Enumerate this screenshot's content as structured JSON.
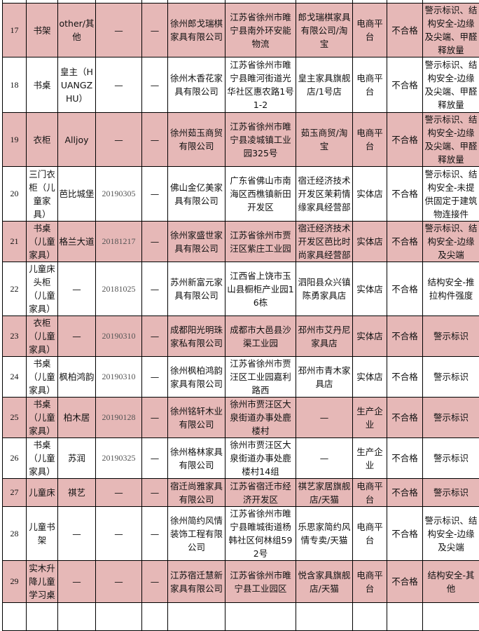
{
  "colors": {
    "highlight_row": "#e6b8b7",
    "border": "#000000"
  },
  "rows": [
    {
      "no": "17",
      "product": "书架",
      "brand": "other/其他",
      "date": "—",
      "spec": "—",
      "producer": "徐州郎戈瑞棋家具有限公司",
      "address": "江苏省徐州市睢宁县南外环安能物流",
      "seller": "郎戈瑞棋家具有限公司/淘宝",
      "channel": "电商平台",
      "result": "不合格",
      "items": "警示标识、结构安全-边缘及尖端、甲醛释放量",
      "highlight": true
    },
    {
      "no": "18",
      "product": "书桌",
      "brand": "皇主（HUANGZHU）",
      "date": "—",
      "spec": "—",
      "producer": "徐州木香花家具有限公司",
      "address": "江苏省徐州市睢宁县睢河街道光华社区惠农路1号1-2",
      "seller": "皇主家具旗舰店/1号店",
      "channel": "电商平台",
      "result": "不合格",
      "items": "警示标识、结构安全-边缘及尖端、甲醛释放量",
      "highlight": false
    },
    {
      "no": "19",
      "product": "衣柜",
      "brand": "Alljoy",
      "date": "—",
      "spec": "—",
      "producer": "徐州茹玉商贸有限公司",
      "address": "江苏省徐州市睢宁县凌城镇工业园325号",
      "seller": "茹玉商贸/淘宝",
      "channel": "电商平台",
      "result": "不合格",
      "items": "警示标识、结构安全-边缘及尖端、甲醛释放量",
      "highlight": true
    },
    {
      "no": "20",
      "product": "三门衣柜（儿童家具）",
      "brand": "芭比城堡",
      "date": "20190305",
      "spec": "—",
      "producer": "佛山金亿美家具有限公司",
      "address": "广东省佛山市南海区西樵镇新田开发区",
      "seller": "宿迁经济技术开发区茉莉情缘家具经营部",
      "channel": "实体店",
      "result": "不合格",
      "items": "警示标识、结构安全-未提供固定于建筑物连接件",
      "highlight": false
    },
    {
      "no": "21",
      "product": "书桌（儿童家具）",
      "brand": "格兰大道",
      "date": "20181217",
      "spec": "—",
      "producer": "徐州家盛世家具有限公司",
      "address": "江苏省徐州市贾汪区紫庄工业园",
      "seller": "宿迁经济技术开发区芭比时尚家具经营部",
      "channel": "实体店",
      "result": "不合格",
      "items": "警示标识、结构安全-边缘及尖端",
      "highlight": true
    },
    {
      "no": "22",
      "product": "儿童床头柜（儿童家具）",
      "brand": "—",
      "date": "20181025",
      "spec": "—",
      "producer": "苏州新富元家具有限公司",
      "address": "江西省上饶市玉山县橱柜产业园16栋",
      "seller": "泗阳县众兴镇陈勇家具店",
      "channel": "实体店",
      "result": "不合格",
      "items": "结构安全-推拉构件强度",
      "highlight": false
    },
    {
      "no": "23",
      "product": "衣柜（儿童家具）",
      "brand": "—",
      "date": "20190310",
      "spec": "—",
      "producer": "成都阳光明珠家私有限公司",
      "address": "成都市大邑县沙渠工业园",
      "seller": "邳州市艾丹尼家具店",
      "channel": "实体店",
      "result": "不合格",
      "items": "警示标识",
      "highlight": true
    },
    {
      "no": "24",
      "product": "书桌（儿童家具）",
      "brand": "枫柏鸿韵",
      "date": "20190310",
      "spec": "—",
      "producer": "徐州枫柏鸿韵家具有限公司",
      "address": "江苏省徐州市贾汪区工业园嘉利路西",
      "seller": "邳州市青木家具店",
      "channel": "实体店",
      "result": "不合格",
      "items": "警示标识",
      "highlight": false
    },
    {
      "no": "25",
      "product": "书桌（儿童家具）",
      "brand": "柏木居",
      "date": "20190128",
      "spec": "—",
      "producer": "徐州铭轩木业有限公司",
      "address": "徐州市贾汪区大泉街道办事处鹿楼村",
      "seller": "—",
      "channel": "生产企业",
      "result": "不合格",
      "items": "警示标识",
      "highlight": true
    },
    {
      "no": "26",
      "product": "书桌（儿童家具）",
      "brand": "苏润",
      "date": "20190325",
      "spec": "—",
      "producer": "徐州格林家具有限公司",
      "address": "徐州市贾汪区大泉街道办事处鹿楼村14组",
      "seller": "—",
      "channel": "生产企业",
      "result": "不合格",
      "items": "警示标识",
      "highlight": false
    },
    {
      "no": "27",
      "product": "儿童床",
      "brand": "祺艺",
      "date": "—",
      "spec": "—",
      "producer": "宿迁尚雅家具有限公司",
      "address": "江苏省宿迁市经济开发区",
      "seller": "祺艺家居旗舰店/天猫",
      "channel": "电商平台",
      "result": "不合格",
      "items": "警示标识",
      "highlight": true
    },
    {
      "no": "28",
      "product": "儿童书架",
      "brand": "—",
      "date": "—",
      "spec": "—",
      "producer": "徐州简约风情装饰工程有限公司",
      "address": "江苏省徐州市睢宁县睢城街道杨韩社区何林组592号",
      "seller": "乐思家简约风情专卖/天猫",
      "channel": "电商平台",
      "result": "不合格",
      "items": "警示标识、结构安全-边缘及尖端",
      "highlight": false
    },
    {
      "no": "29",
      "product": "实木升降儿童学习桌",
      "brand": "—",
      "date": "—",
      "spec": "—",
      "producer": "江苏宿迁慧新家具有限公司",
      "address": "江苏省徐州市睢宁县工业园区",
      "seller": "悦含家具旗舰店/天猫",
      "channel": "电商平台",
      "result": "不合格",
      "items": "结构安全-其他",
      "highlight": true
    }
  ]
}
